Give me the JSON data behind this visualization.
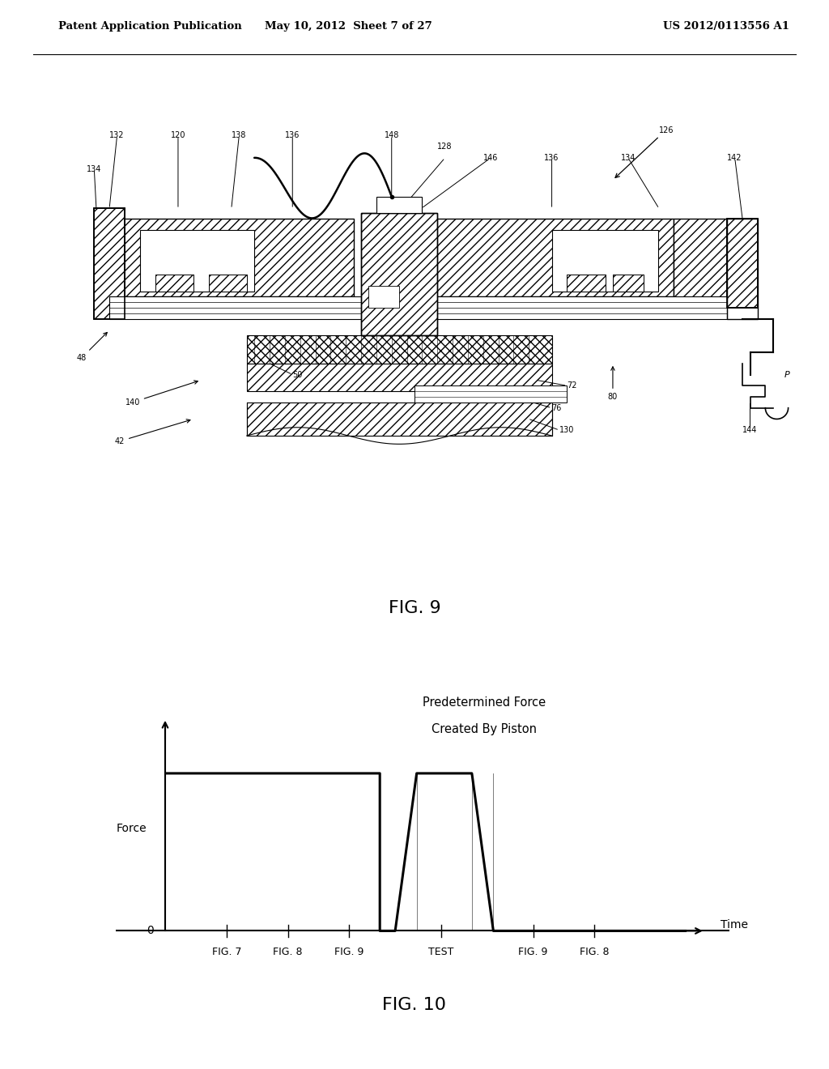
{
  "header_left": "Patent Application Publication",
  "header_mid": "May 10, 2012  Sheet 7 of 27",
  "header_right": "US 2012/0113556 A1",
  "fig9_label": "FIG. 9",
  "fig10_label": "FIG. 10",
  "graph_title_line1": "Predetermined Force",
  "graph_title_line2": "Created By Piston",
  "graph_ylabel": "Force",
  "graph_xlabel": "Time",
  "graph_x_ticks": [
    "FIG. 7",
    "FIG. 8",
    "FIG. 9",
    "TEST",
    "FIG. 9",
    "FIG. 8"
  ],
  "graph_x_tick_pos": [
    1.0,
    2.0,
    3.0,
    4.5,
    6.0,
    7.0
  ],
  "line_color": "#000000",
  "bg_color": "#ffffff",
  "header_fontsize": 10,
  "fig_label_fontsize": 16
}
